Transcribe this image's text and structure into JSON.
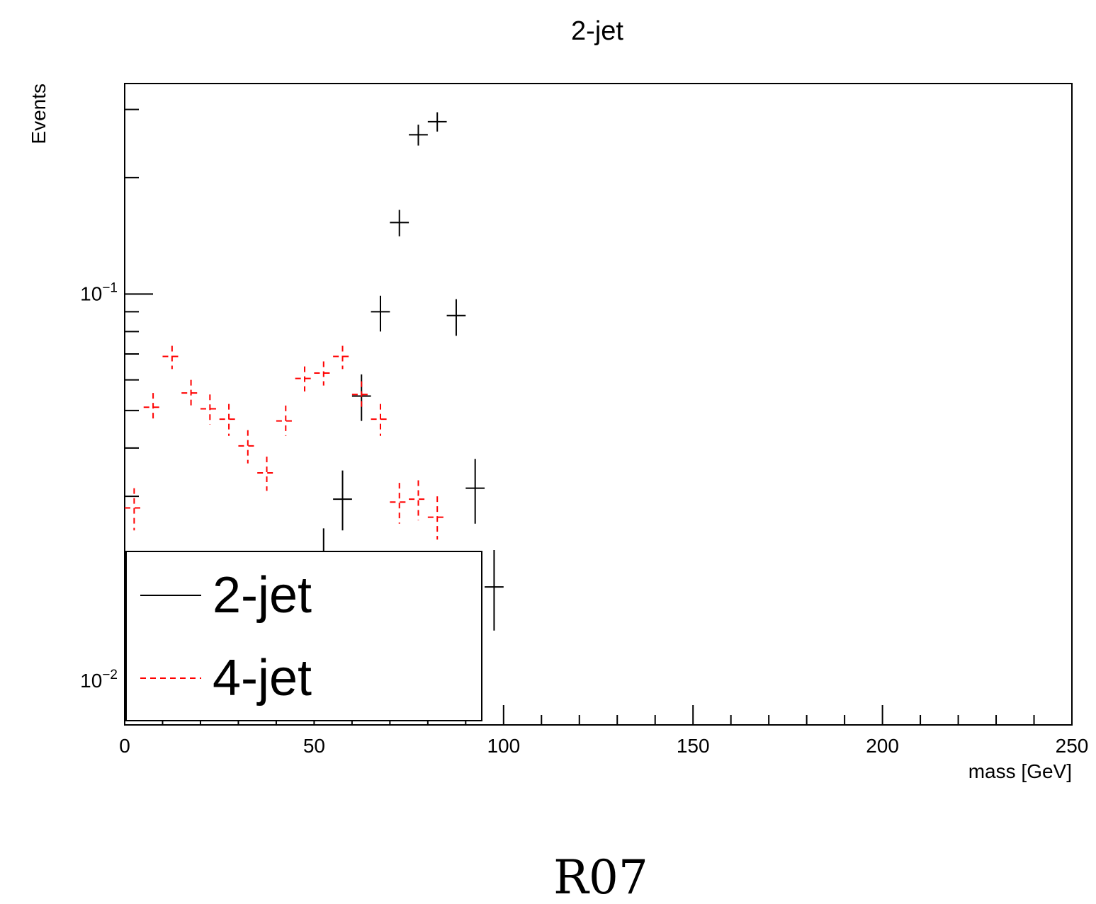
{
  "chart_data": {
    "type": "scatter",
    "title": "2-jet",
    "xlabel": "mass [GeV]",
    "ylabel": "Events",
    "xlim": [
      0,
      250
    ],
    "ylim": [
      0.0077,
      0.35
    ],
    "yscale": "log",
    "grid": false,
    "legend_position": "bottom-left",
    "x_ticks": [
      "0",
      "50",
      "100",
      "150",
      "200",
      "250"
    ],
    "y_ticks": [
      {
        "base": "10",
        "exp": "−1",
        "value": 0.1
      },
      {
        "base": "10",
        "exp": "−2",
        "value": 0.01
      }
    ],
    "bin_half_width": 2.5,
    "series": [
      {
        "name": "2-jet",
        "color": "#000000",
        "line_style": "solid",
        "points": [
          {
            "x": 52.5,
            "y": 0.0205,
            "lo": 0.017,
            "hi": 0.0248
          },
          {
            "x": 57.5,
            "y": 0.0295,
            "lo": 0.0245,
            "hi": 0.035
          },
          {
            "x": 62.5,
            "y": 0.0545,
            "lo": 0.047,
            "hi": 0.062
          },
          {
            "x": 67.5,
            "y": 0.09,
            "lo": 0.08,
            "hi": 0.099
          },
          {
            "x": 72.5,
            "y": 0.153,
            "lo": 0.141,
            "hi": 0.165
          },
          {
            "x": 77.5,
            "y": 0.258,
            "lo": 0.242,
            "hi": 0.274
          },
          {
            "x": 82.5,
            "y": 0.279,
            "lo": 0.263,
            "hi": 0.295
          },
          {
            "x": 87.5,
            "y": 0.088,
            "lo": 0.078,
            "hi": 0.097
          },
          {
            "x": 92.5,
            "y": 0.0315,
            "lo": 0.0255,
            "hi": 0.0375
          },
          {
            "x": 97.5,
            "y": 0.0175,
            "lo": 0.0135,
            "hi": 0.0218
          }
        ]
      },
      {
        "name": "4-jet",
        "color": "#ff0000",
        "line_style": "dashed",
        "points": [
          {
            "x": 2.5,
            "y": 0.028,
            "lo": 0.0245,
            "hi": 0.0315
          },
          {
            "x": 7.5,
            "y": 0.051,
            "lo": 0.0465,
            "hi": 0.0555
          },
          {
            "x": 12.5,
            "y": 0.069,
            "lo": 0.064,
            "hi": 0.0735
          },
          {
            "x": 17.5,
            "y": 0.0555,
            "lo": 0.051,
            "hi": 0.06
          },
          {
            "x": 22.5,
            "y": 0.0505,
            "lo": 0.046,
            "hi": 0.055
          },
          {
            "x": 27.5,
            "y": 0.0475,
            "lo": 0.043,
            "hi": 0.052
          },
          {
            "x": 32.5,
            "y": 0.0405,
            "lo": 0.0365,
            "hi": 0.0445
          },
          {
            "x": 37.5,
            "y": 0.0345,
            "lo": 0.031,
            "hi": 0.038
          },
          {
            "x": 42.5,
            "y": 0.047,
            "lo": 0.043,
            "hi": 0.0515
          },
          {
            "x": 47.5,
            "y": 0.0605,
            "lo": 0.056,
            "hi": 0.065
          },
          {
            "x": 52.5,
            "y": 0.0625,
            "lo": 0.058,
            "hi": 0.067
          },
          {
            "x": 57.5,
            "y": 0.069,
            "lo": 0.064,
            "hi": 0.0735
          },
          {
            "x": 62.5,
            "y": 0.055,
            "lo": 0.0505,
            "hi": 0.0595
          },
          {
            "x": 67.5,
            "y": 0.0475,
            "lo": 0.043,
            "hi": 0.052
          },
          {
            "x": 72.5,
            "y": 0.029,
            "lo": 0.0255,
            "hi": 0.0325
          },
          {
            "x": 77.5,
            "y": 0.0295,
            "lo": 0.026,
            "hi": 0.033
          },
          {
            "x": 82.5,
            "y": 0.0265,
            "lo": 0.0232,
            "hi": 0.03
          }
        ]
      }
    ]
  },
  "caption": "R07"
}
